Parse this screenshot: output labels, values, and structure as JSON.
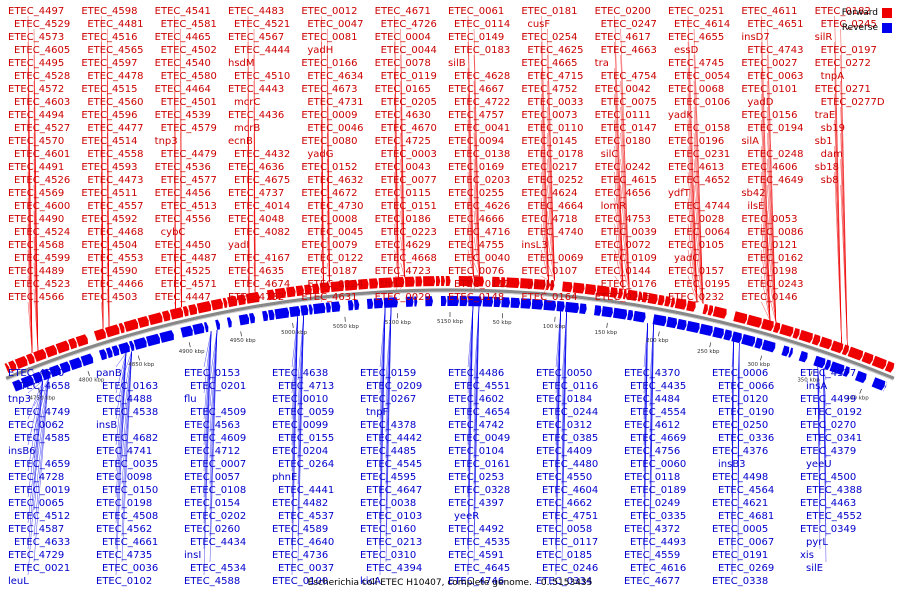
{
  "caption": "Escherichia coli ETEC H10407, complete genome. - 0..5153435",
  "legend": [
    {
      "label": "Forward",
      "color": "#ee0000"
    },
    {
      "label": "Reverse",
      "color": "#0000ee"
    }
  ],
  "colors": {
    "forward": "#ee0000",
    "reverse": "#0000ee",
    "backbone": "#888888"
  },
  "ticks": [
    "4750 kbp",
    "4800 kbp",
    "4850 kbp",
    "4900 kbp",
    "4950 kbp",
    "5000 kbp",
    "5050 kbp",
    "5100 kbp",
    "5150 kbp",
    "50 kbp",
    "100 kbp",
    "150 kbp",
    "200 kbp",
    "250 kbp",
    "300 kbp",
    "350 kbp",
    "400 kbp"
  ],
  "forward_labels": [
    "ETEC_4497",
    "ETEC_4529",
    "ETEC_4573",
    "ETEC_4605",
    "ETEC_4495",
    "ETEC_4528",
    "ETEC_4572",
    "ETEC_4603",
    "ETEC_4494",
    "ETEC_4527",
    "ETEC_4570",
    "ETEC_4601",
    "ETEC_4491",
    "ETEC_4526",
    "ETEC_4569",
    "ETEC_4600",
    "ETEC_4490",
    "ETEC_4524",
    "ETEC_4568",
    "ETEC_4599",
    "ETEC_4489",
    "ETEC_4523",
    "ETEC_4566",
    "ETEC_4598",
    "ETEC_4481",
    "ETEC_4516",
    "ETEC_4565",
    "ETEC_4597",
    "ETEC_4478",
    "ETEC_4515",
    "ETEC_4560",
    "ETEC_4596",
    "ETEC_4477",
    "ETEC_4514",
    "ETEC_4558",
    "ETEC_4593",
    "ETEC_4473",
    "ETEC_4511",
    "ETEC_4557",
    "ETEC_4592",
    "ETEC_4468",
    "ETEC_4504",
    "ETEC_4553",
    "ETEC_4590",
    "ETEC_4466",
    "ETEC_4503",
    "ETEC_4541",
    "ETEC_4581",
    "ETEC_4465",
    "ETEC_4502",
    "ETEC_4540",
    "ETEC_4580",
    "ETEC_4464",
    "ETEC_4501",
    "ETEC_4539",
    "ETEC_4579",
    "tnp3",
    "ETEC_4479",
    "ETEC_4536",
    "ETEC_4577",
    "ETEC_4456",
    "ETEC_4513",
    "ETEC_4556",
    "cybC",
    "ETEC_4450",
    "ETEC_4487",
    "ETEC_4525",
    "ETEC_4571",
    "ETEC_4447",
    "ETEC_4483",
    "ETEC_4521",
    "ETEC_4567",
    "ETEC_4444",
    "hsdM",
    "ETEC_4510",
    "ETEC_4443",
    "mcrC",
    "ETEC_4436",
    "mcrB",
    "ecnB",
    "ETEC_4432",
    "ETEC_4636",
    "ETEC_4675",
    "ETEC_4737",
    "ETEC_4014",
    "ETEC_4048",
    "ETEC_4082",
    "yadI",
    "ETEC_4167",
    "ETEC_4635",
    "ETEC_4674",
    "ETEC_4732",
    "ETEC_0012",
    "ETEC_0047",
    "ETEC_0081",
    "yadH",
    "ETEC_0166",
    "ETEC_4634",
    "ETEC_4673",
    "ETEC_4731",
    "ETEC_0009",
    "ETEC_0046",
    "ETEC_0080",
    "yadG",
    "ETEC_0152",
    "ETEC_4632",
    "ETEC_4672",
    "ETEC_4730",
    "ETEC_0008",
    "ETEC_0045",
    "ETEC_0079",
    "ETEC_0122",
    "ETEC_0187",
    "ETEC_0224",
    "ETEC_4631",
    "ETEC_4671",
    "ETEC_4726",
    "ETEC_0004",
    "ETEC_0044",
    "ETEC_0078",
    "ETEC_0119",
    "ETEC_0165",
    "ETEC_0205",
    "ETEC_4630",
    "ETEC_4670",
    "ETEC_4725",
    "ETEC_0003",
    "ETEC_0043",
    "ETEC_0077",
    "ETEC_0115",
    "ETEC_0151",
    "ETEC_0186",
    "ETEC_0223",
    "ETEC_4629",
    "ETEC_4668",
    "ETEC_4723",
    "thrL",
    "ETEC_0029",
    "ETEC_0061",
    "ETEC_0114",
    "ETEC_0149",
    "ETEC_0183",
    "silB",
    "ETEC_4628",
    "ETEC_4667",
    "ETEC_4722",
    "ETEC_4757",
    "ETEC_0041",
    "ETEC_0094",
    "ETEC_0138",
    "ETEC_0169",
    "ETEC_0203",
    "ETEC_0255",
    "ETEC_4626",
    "ETEC_4666",
    "ETEC_4716",
    "ETEC_4755",
    "ETEC_0040",
    "ETEC_0076",
    "ETEC_0112",
    "ETEC_0148",
    "ETEC_0181",
    "cusF",
    "ETEC_0254",
    "ETEC_4625",
    "ETEC_4665",
    "ETEC_4715",
    "ETEC_4752",
    "ETEC_0033",
    "ETEC_0073",
    "ETEC_0110",
    "ETEC_0145",
    "ETEC_0178",
    "ETEC_0217",
    "ETEC_0252",
    "ETEC_4624",
    "ETEC_4664",
    "ETEC_4718",
    "ETEC_4740",
    "insL3",
    "ETEC_0069",
    "ETEC_0107",
    "yadM",
    "ETEC_0164",
    "ETEC_0200",
    "ETEC_0247",
    "ETEC_4617",
    "ETEC_4663",
    "tra",
    "ETEC_4754",
    "ETEC_0042",
    "ETEC_0075",
    "ETEC_0111",
    "ETEC_0147",
    "ETEC_0180",
    "silC",
    "ETEC_0242",
    "ETEC_4615",
    "ETEC_4656",
    "lomR",
    "ETEC_4753",
    "ETEC_0039",
    "ETEC_0072",
    "ETEC_0109",
    "ETEC_0144",
    "ETEC_0176",
    "ETEC_0215",
    "ETEC_0251",
    "ETEC_4614",
    "ETEC_4655",
    "essD",
    "ETEC_4745",
    "ETEC_0054",
    "ETEC_0068",
    "ETEC_0106",
    "yadK",
    "ETEC_0158",
    "ETEC_0196",
    "ETEC_0231",
    "ETEC_4613",
    "ETEC_4652",
    "ydfT",
    "ETEC_4744",
    "ETEC_0028",
    "ETEC_0064",
    "ETEC_0105",
    "yadC",
    "ETEC_0157",
    "ETEC_0195",
    "ETEC_0232",
    "ETEC_4611",
    "ETEC_4651",
    "insD7",
    "ETEC_4743",
    "ETEC_0027",
    "ETEC_0063",
    "ETEC_0101",
    "yadD",
    "ETEC_0156",
    "ETEC_0194",
    "silA",
    "ETEC_0248",
    "ETEC_4606",
    "ETEC_4649",
    "sb42",
    "ilsE",
    "ETEC_0053",
    "ETEC_0086",
    "ETEC_0121",
    "ETEC_0162",
    "ETEC_0198",
    "ETEC_0243",
    "ETEC_0146",
    "ETEC_0182",
    "ETEC_0245",
    "silR",
    "ETEC_0197",
    "ETEC_0272",
    "tnpA",
    "ETEC_0271",
    "ETEC_0277D",
    "traE",
    "sb19",
    "sb1",
    "dam",
    "sb18",
    "sb8"
  ],
  "reverse_labels": [
    "ETEC_4610",
    "ETEC_4658",
    "tnp3",
    "ETEC_4749",
    "ETEC_0062",
    "ETEC_4585",
    "insB6",
    "ETEC_4659",
    "ETEC_4728",
    "ETEC_0019",
    "ETEC_0065",
    "ETEC_4512",
    "ETEC_4587",
    "ETEC_4633",
    "ETEC_4729",
    "ETEC_0021",
    "leuL",
    "panB",
    "ETEC_0163",
    "ETEC_4488",
    "ETEC_4538",
    "insB",
    "ETEC_4682",
    "ETEC_4741",
    "ETEC_0035",
    "ETEC_0098",
    "ETEC_0150",
    "ETEC_0198",
    "ETEC_4508",
    "ETEC_4562",
    "ETEC_4661",
    "ETEC_4735",
    "ETEC_0036",
    "ETEC_0102",
    "ETEC_0153",
    "ETEC_0201",
    "flu",
    "ETEC_4509",
    "ETEC_4563",
    "ETEC_4609",
    "ETEC_4712",
    "ETEC_0007",
    "ETEC_0057",
    "ETEC_0108",
    "ETEC_0154",
    "ETEC_0202",
    "ETEC_0260",
    "ETEC_4434",
    "insI",
    "ETEC_4534",
    "ETEC_4588",
    "ETEC_4638",
    "ETEC_4713",
    "ETEC_0010",
    "ETEC_0059",
    "ETEC_0099",
    "ETEC_0155",
    "ETEC_0204",
    "ETEC_0264",
    "phnE",
    "ETEC_4441",
    "ETEC_4482",
    "ETEC_4537",
    "ETEC_4589",
    "ETEC_4640",
    "ETEC_4736",
    "ETEC_0037",
    "ETEC_0100",
    "ETEC_0159",
    "ETEC_0209",
    "ETEC_0267",
    "tnpF",
    "ETEC_4378",
    "ETEC_4442",
    "ETEC_4485",
    "ETEC_4545",
    "ETEC_4595",
    "ETEC_4647",
    "ETEC_0038",
    "ETEC_0103",
    "ETEC_0160",
    "ETEC_0213",
    "ETEC_0310",
    "ETEC_4394",
    "kicA",
    "ETEC_4486",
    "ETEC_4551",
    "ETEC_4602",
    "ETEC_4654",
    "ETEC_4742",
    "ETEC_0049",
    "ETEC_0104",
    "ETEC_0161",
    "ETEC_0253",
    "ETEC_0328",
    "ETEC_4397",
    "yeeR",
    "ETEC_4492",
    "ETEC_4535",
    "ETEC_4591",
    "ETEC_4645",
    "ETEC_4746",
    "ETEC_0050",
    "ETEC_0116",
    "ETEC_0184",
    "ETEC_0244",
    "ETEC_0312",
    "ETEC_0385",
    "ETEC_4409",
    "ETEC_4480",
    "ETEC_4550",
    "ETEC_4604",
    "ETEC_4662",
    "ETEC_4751",
    "ETEC_0058",
    "ETEC_0117",
    "ETEC_0185",
    "ETEC_0246",
    "ETEC_0334",
    "ETEC_4370",
    "ETEC_4435",
    "ETEC_4484",
    "ETEC_4554",
    "ETEC_4612",
    "ETEC_4669",
    "ETEC_4756",
    "ETEC_0060",
    "ETEC_0118",
    "ETEC_0189",
    "ETEC_0249",
    "ETEC_0335",
    "ETEC_4372",
    "ETEC_4493",
    "ETEC_4559",
    "ETEC_4616",
    "ETEC_4677",
    "ETEC_0006",
    "ETEC_0066",
    "ETEC_0120",
    "ETEC_0190",
    "ETEC_0250",
    "ETEC_0336",
    "ETEC_4376",
    "insB3",
    "ETEC_4498",
    "ETEC_4564",
    "ETEC_4621",
    "ETEC_4681",
    "ETEC_0005",
    "ETEC_0067",
    "ETEC_0191",
    "ETEC_0269",
    "ETEC_0338",
    "ETEC_4377",
    "insA",
    "ETEC_4499",
    "ETEC_0192",
    "ETEC_0270",
    "ETEC_0341",
    "ETEC_4379",
    "yeeU",
    "ETEC_4500",
    "ETEC_4388",
    "ETEC_4463",
    "ETEC_4552",
    "ETEC_0349",
    "pyrL",
    "xis",
    "silE"
  ]
}
